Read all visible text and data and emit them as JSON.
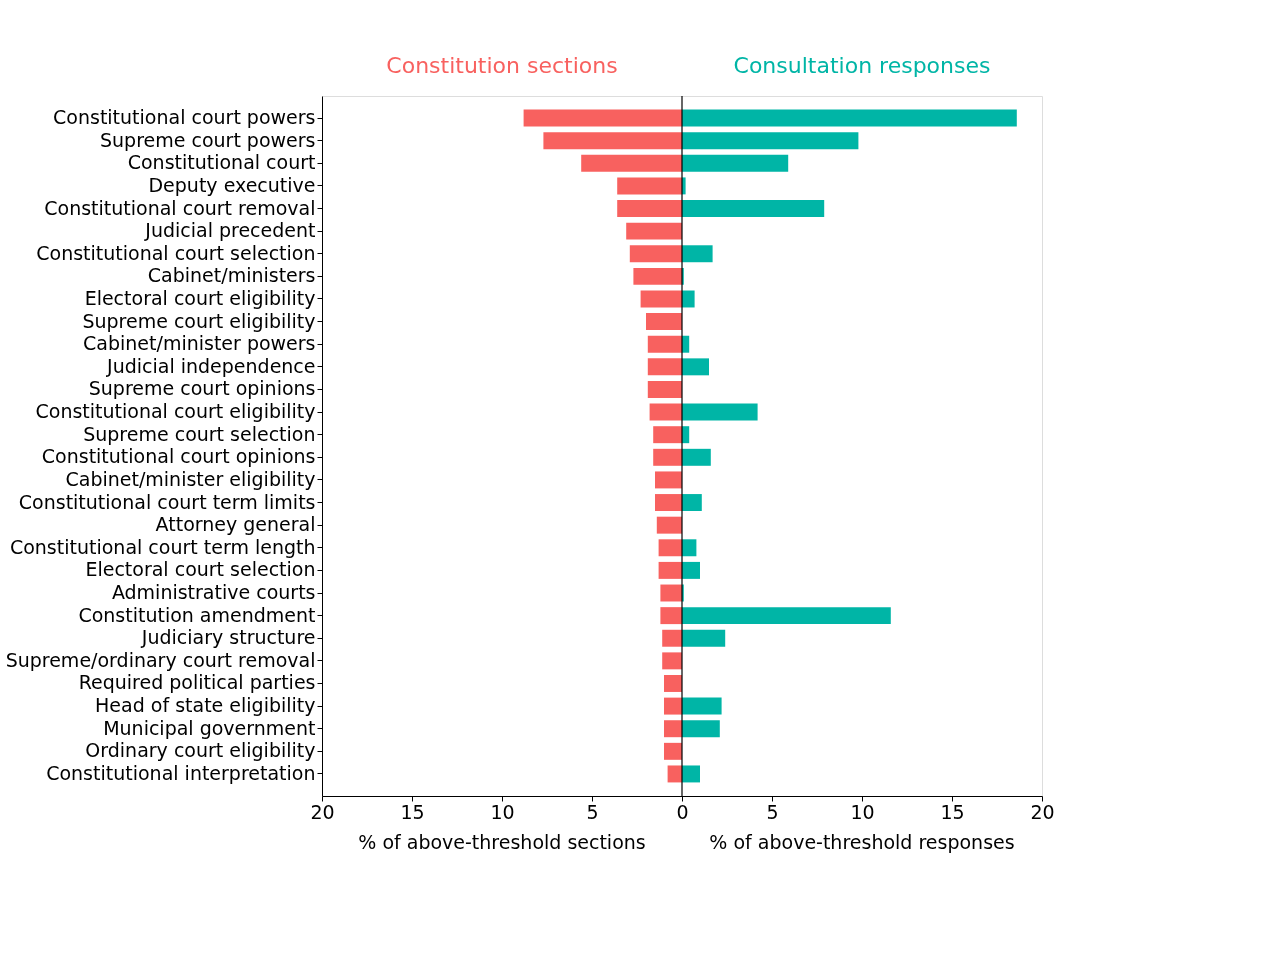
{
  "chart_data": {
    "type": "bar",
    "orientation": "horizontal",
    "stacked": true,
    "categories": [
      "Constitutional court powers",
      "Supreme court powers",
      "Constitutional court",
      "Deputy executive",
      "Constitutional court removal",
      "Judicial precedent",
      "Constitutional court selection",
      "Cabinet/ministers",
      "Electoral court eligibility",
      "Supreme court eligibility",
      "Cabinet/minister powers",
      "Judicial independence",
      "Supreme court opinions",
      "Constitutional court eligibility",
      "Supreme court selection",
      "Constitutional court opinions",
      "Cabinet/minister eligibility",
      "Constitutional court term limits",
      "Attorney general",
      "Constitutional court term length",
      "Electoral court selection",
      "Administrative courts",
      "Constitution amendment",
      "Judiciary structure",
      "Supreme/ordinary court removal",
      "Required political parties",
      "Head of state eligibility",
      "Municipal government",
      "Ordinary court eligibility",
      "Constitutional interpretation"
    ],
    "series": [
      {
        "name": "Constitution sections",
        "color": "#f8615f",
        "values": [
          -8.8,
          -7.7,
          -5.6,
          -3.6,
          -3.6,
          -3.1,
          -2.9,
          -2.7,
          -2.3,
          -2.0,
          -1.9,
          -1.9,
          -1.9,
          -1.8,
          -1.6,
          -1.6,
          -1.5,
          -1.5,
          -1.4,
          -1.3,
          -1.3,
          -1.2,
          -1.2,
          -1.1,
          -1.1,
          -1.0,
          -1.0,
          -1.0,
          -1.0,
          -0.8
        ]
      },
      {
        "name": "Consultation responses",
        "color": "#00b5a6",
        "values": [
          18.6,
          9.8,
          5.9,
          0.2,
          7.9,
          0,
          1.7,
          0.1,
          0.7,
          0,
          0.4,
          1.5,
          0,
          4.2,
          0.4,
          1.6,
          0,
          1.1,
          0,
          0.8,
          1.0,
          0.1,
          11.6,
          2.4,
          0,
          0,
          2.2,
          2.1,
          0,
          1.0
        ]
      }
    ],
    "xlim": [
      -20,
      20
    ],
    "xticks": [
      {
        "value": -20,
        "label": "20"
      },
      {
        "value": -15,
        "label": "15"
      },
      {
        "value": -10,
        "label": "10"
      },
      {
        "value": -5,
        "label": "5"
      },
      0,
      5,
      10,
      15,
      20
    ],
    "ref_lines": [
      {
        "axis": "x",
        "value": 0,
        "color": "#000000"
      }
    ],
    "annotations": [
      "% of above-threshold sections",
      "% of above-threshold responses"
    ],
    "legend": "top",
    "grid": false
  }
}
